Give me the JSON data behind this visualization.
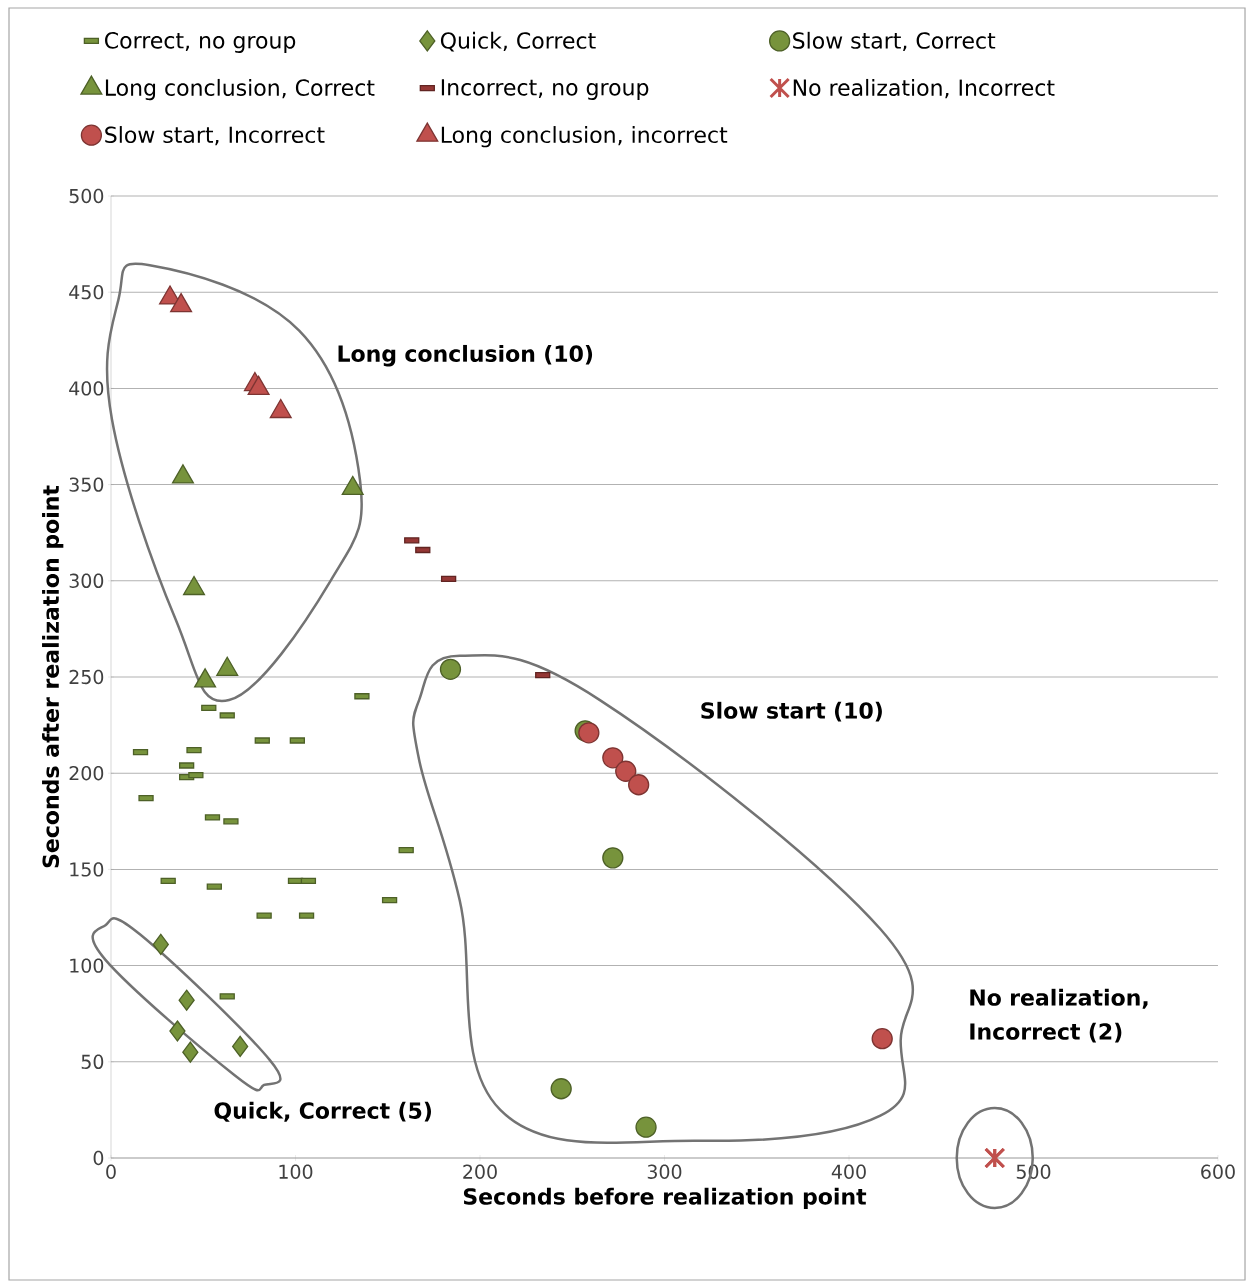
{
  "chart_data": {
    "type": "scatter",
    "xlabel": "Seconds before realization point",
    "ylabel": "Seconds after realization point",
    "xlim": [
      0,
      600
    ],
    "ylim": [
      0,
      500
    ],
    "xticks": [
      0,
      100,
      200,
      300,
      400,
      500,
      600
    ],
    "yticks": [
      0,
      50,
      100,
      150,
      200,
      250,
      300,
      350,
      400,
      450,
      500
    ],
    "grid": "y",
    "legend": "top",
    "series": [
      {
        "name": "Correct, no group",
        "color": "#77933c",
        "marker": "square",
        "x": [
          16,
          19,
          31,
          41,
          41,
          46,
          45,
          53,
          63,
          55,
          65,
          56,
          82,
          101,
          83,
          100,
          107,
          106,
          136,
          151,
          160,
          63
        ],
        "values": [
          211,
          187,
          144,
          204,
          198,
          199,
          212,
          234,
          230,
          177,
          175,
          141,
          217,
          217,
          126,
          144,
          144,
          126,
          240,
          134,
          160,
          84
        ]
      },
      {
        "name": "Quick, Correct",
        "color": "#77933c",
        "marker": "diamond",
        "x": [
          27,
          41,
          36,
          43,
          70
        ],
        "values": [
          111,
          82,
          66,
          55,
          58
        ]
      },
      {
        "name": "Slow start, Correct",
        "color": "#77933c",
        "marker": "circle",
        "x": [
          184,
          257,
          272,
          244,
          290
        ],
        "values": [
          254,
          222,
          156,
          36,
          16
        ]
      },
      {
        "name": "Long conclusion, Correct",
        "color": "#77933c",
        "marker": "triangle",
        "x": [
          39,
          45,
          51,
          63,
          131
        ],
        "values": [
          354,
          296,
          248,
          254,
          348
        ]
      },
      {
        "name": "Incorrect, no group",
        "color": "#953735",
        "marker": "square",
        "x": [
          163,
          169,
          183,
          234
        ],
        "values": [
          321,
          316,
          301,
          251
        ]
      },
      {
        "name": "No realization, Incorrect",
        "color": "#c0504d",
        "marker": "cross",
        "x": [
          479,
          479
        ],
        "values": [
          0,
          0
        ]
      },
      {
        "name": "Slow start, Incorrect",
        "color": "#c0504d",
        "marker": "circle",
        "x": [
          259,
          272,
          279,
          286,
          418
        ],
        "values": [
          221,
          208,
          201,
          194,
          62
        ]
      },
      {
        "name": "Long conclusion, incorrect",
        "color": "#c0504d",
        "marker": "triangle",
        "x": [
          32,
          38,
          78,
          80,
          92
        ],
        "values": [
          447,
          443,
          402,
          400,
          388
        ]
      }
    ],
    "annotations": [
      "Long conclusion  (10)",
      "Slow start (10)",
      "No realization, Incorrect (2)",
      "Quick, Correct (5)"
    ]
  }
}
